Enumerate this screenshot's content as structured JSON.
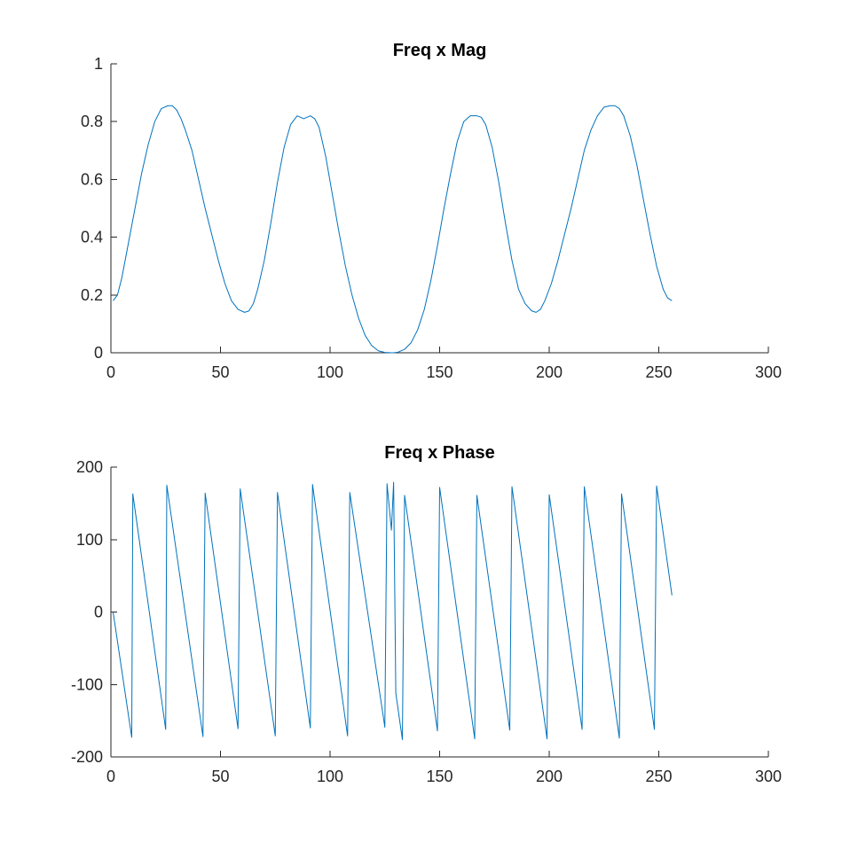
{
  "chart_data": [
    {
      "type": "line",
      "title": "Freq x Mag",
      "xlabel": "",
      "ylabel": "",
      "xlim": [
        0,
        300
      ],
      "ylim": [
        0,
        1
      ],
      "xticks": [
        0,
        50,
        100,
        150,
        200,
        250,
        300
      ],
      "yticks": [
        0,
        0.2,
        0.4,
        0.6,
        0.8,
        1
      ],
      "xtick_labels": [
        "0",
        "50",
        "100",
        "150",
        "200",
        "250",
        "300"
      ],
      "ytick_labels": [
        "0",
        "0.2",
        "0.4",
        "0.6",
        "0.8",
        "1"
      ],
      "grid": false,
      "line_color": "#0072bd",
      "series": [
        {
          "x": [
            1,
            3,
            5,
            8,
            11,
            14,
            17,
            20,
            23,
            26,
            28,
            30,
            32,
            34,
            37,
            40,
            43,
            46,
            49,
            52,
            55,
            58,
            61,
            63,
            65,
            67,
            70,
            73,
            76,
            79,
            82,
            85,
            88,
            91,
            93,
            95,
            98,
            101,
            104,
            107,
            110,
            113,
            116,
            119,
            122,
            125,
            128,
            129,
            131,
            134,
            137,
            140,
            143,
            146,
            149,
            152,
            155,
            158,
            161,
            164,
            167,
            169,
            171,
            174,
            177,
            180,
            183,
            186,
            189,
            192,
            194,
            196,
            198,
            201,
            204,
            207,
            210,
            213,
            216,
            219,
            222,
            225,
            228,
            230,
            232,
            234,
            237,
            240,
            243,
            246,
            249,
            252,
            254,
            256
          ],
          "y": [
            0.18,
            0.2,
            0.26,
            0.38,
            0.5,
            0.62,
            0.72,
            0.8,
            0.845,
            0.855,
            0.855,
            0.84,
            0.81,
            0.77,
            0.7,
            0.6,
            0.5,
            0.41,
            0.32,
            0.24,
            0.18,
            0.15,
            0.14,
            0.145,
            0.17,
            0.22,
            0.32,
            0.45,
            0.59,
            0.71,
            0.79,
            0.82,
            0.81,
            0.82,
            0.81,
            0.78,
            0.68,
            0.55,
            0.42,
            0.3,
            0.2,
            0.12,
            0.06,
            0.025,
            0.007,
            0.001,
            0.0,
            0.0,
            0.002,
            0.012,
            0.035,
            0.08,
            0.15,
            0.25,
            0.37,
            0.5,
            0.62,
            0.73,
            0.8,
            0.82,
            0.82,
            0.815,
            0.79,
            0.71,
            0.59,
            0.45,
            0.32,
            0.22,
            0.17,
            0.145,
            0.14,
            0.15,
            0.18,
            0.24,
            0.32,
            0.41,
            0.5,
            0.6,
            0.7,
            0.77,
            0.82,
            0.85,
            0.855,
            0.855,
            0.845,
            0.82,
            0.75,
            0.65,
            0.53,
            0.41,
            0.3,
            0.22,
            0.19,
            0.18
          ]
        }
      ]
    },
    {
      "type": "line",
      "title": "Freq x Phase",
      "xlabel": "",
      "ylabel": "",
      "xlim": [
        0,
        300
      ],
      "ylim": [
        -200,
        200
      ],
      "xticks": [
        0,
        50,
        100,
        150,
        200,
        250,
        300
      ],
      "yticks": [
        -200,
        -100,
        0,
        100,
        200
      ],
      "xtick_labels": [
        "0",
        "50",
        "100",
        "150",
        "200",
        "250",
        "300"
      ],
      "ytick_labels": [
        "-200",
        "-100",
        "0",
        "100",
        "200"
      ],
      "grid": false,
      "line_color": "#0072bd",
      "series": [
        {
          "x": [
            1,
            9.5,
            10,
            25,
            25.5,
            42,
            43,
            58,
            59,
            75,
            76,
            91,
            92,
            108,
            109,
            125,
            126,
            128,
            129,
            130,
            133,
            134,
            149,
            150,
            166,
            167,
            182,
            183,
            199,
            200,
            215,
            216,
            232,
            233,
            248,
            249,
            256
          ],
          "y": [
            0,
            -173,
            163,
            -162,
            175,
            -172,
            164,
            -161,
            170,
            -171,
            165,
            -160,
            176,
            -171,
            165,
            -159,
            177,
            113,
            179,
            -112,
            -176,
            161,
            -164,
            172,
            -175,
            161,
            -163,
            173,
            -175,
            162,
            -162,
            173,
            -174,
            163,
            -162,
            174,
            23
          ]
        }
      ]
    }
  ]
}
